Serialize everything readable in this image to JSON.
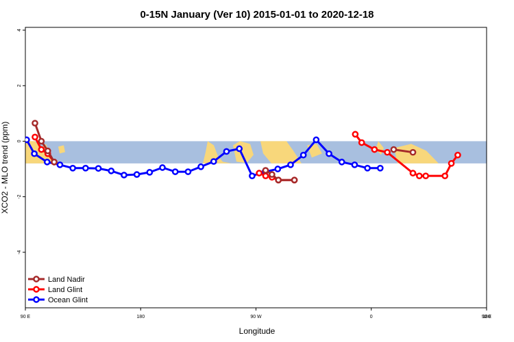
{
  "chart_data": {
    "type": "line",
    "title": "0-15N January (Ver 10)   2015-01-01 to 2020-12-18",
    "xlabel": "Longitude",
    "ylabel": "XCO2 - MLO trend (ppm)",
    "xlim": [
      90,
      450
    ],
    "ylim": [
      -6,
      4.1
    ],
    "x_ticks": [
      {
        "value": 90,
        "label": "90 E"
      },
      {
        "value": 180,
        "label": "180"
      },
      {
        "value": 270,
        "label": "90 W"
      },
      {
        "value": 360,
        "label": "0"
      },
      {
        "value": 450,
        "label": "90 E"
      },
      {
        "value": 540,
        "label": "180"
      }
    ],
    "y_ticks": [
      {
        "value": 4,
        "label": "4"
      },
      {
        "value": 2,
        "label": "2"
      },
      {
        "value": 0,
        "label": "0"
      },
      {
        "value": -2,
        "label": "-2"
      },
      {
        "value": -4,
        "label": "-4"
      }
    ],
    "band": {
      "from": -0.8,
      "to": 0,
      "color": "#a8bfdf"
    },
    "land_color": "#f8d77b",
    "series": [
      {
        "name": "Land Nadir",
        "color": "#a52a2a",
        "points": [
          [
            97.5,
            0.65
          ],
          [
            102.5,
            0.0
          ],
          [
            107.5,
            -0.35
          ],
          [
            112.5,
            -0.75
          ],
          [
            277.5,
            -1.05
          ],
          [
            282.5,
            -1.2
          ],
          [
            287.5,
            -1.4
          ],
          [
            300,
            -1.4
          ],
          [
            377.5,
            -0.3
          ],
          [
            392.5,
            -0.4
          ],
          [
            477.5,
            0.65
          ],
          [
            482.5,
            0.0
          ],
          [
            487.5,
            -0.45
          ],
          [
            492.5,
            -0.75
          ]
        ]
      },
      {
        "name": "Land Glint",
        "color": "#ff0000",
        "points": [
          [
            97.5,
            0.15
          ],
          [
            102.5,
            -0.3
          ],
          [
            107.5,
            -0.45
          ],
          [
            112.5,
            -0.75
          ],
          [
            272.5,
            -1.15
          ],
          [
            277.5,
            -1.25
          ],
          [
            282.5,
            -1.3
          ],
          [
            287.5,
            -1.4
          ],
          [
            300,
            -1.4
          ],
          [
            347.5,
            0.25
          ],
          [
            352.5,
            -0.05
          ],
          [
            362.5,
            -0.3
          ],
          [
            372.5,
            -0.4
          ],
          [
            392.5,
            -1.15
          ],
          [
            397.5,
            -1.25
          ],
          [
            402.5,
            -1.25
          ],
          [
            417.5,
            -1.25
          ],
          [
            422.5,
            -0.8
          ],
          [
            427.5,
            -0.5
          ],
          [
            472.5,
            0.15
          ],
          [
            477.5,
            -0.3
          ],
          [
            482.5,
            -0.45
          ],
          [
            487.5,
            -0.75
          ]
        ]
      },
      {
        "name": "Ocean Glint",
        "color": "#0000ff",
        "points": [
          [
            91,
            0.05
          ],
          [
            97,
            -0.45
          ],
          [
            107,
            -0.75
          ],
          [
            117,
            -0.85
          ],
          [
            127,
            -0.97
          ],
          [
            137,
            -0.97
          ],
          [
            147,
            -0.98
          ],
          [
            157,
            -1.07
          ],
          [
            167,
            -1.22
          ],
          [
            177,
            -1.2
          ],
          [
            187,
            -1.12
          ],
          [
            197,
            -0.95
          ],
          [
            207,
            -1.1
          ],
          [
            217,
            -1.1
          ],
          [
            227,
            -0.92
          ],
          [
            237,
            -0.73
          ],
          [
            247,
            -0.37
          ],
          [
            257,
            -0.27
          ],
          [
            267,
            -1.25
          ],
          [
            277,
            -1.1
          ],
          [
            287,
            -1.0
          ],
          [
            297,
            -0.85
          ],
          [
            307,
            -0.5
          ],
          [
            317,
            0.05
          ],
          [
            327,
            -0.45
          ],
          [
            337,
            -0.75
          ],
          [
            347,
            -0.85
          ],
          [
            357,
            -0.97
          ],
          [
            367,
            -0.97
          ]
        ]
      }
    ],
    "legend_position": "bottom-left"
  }
}
